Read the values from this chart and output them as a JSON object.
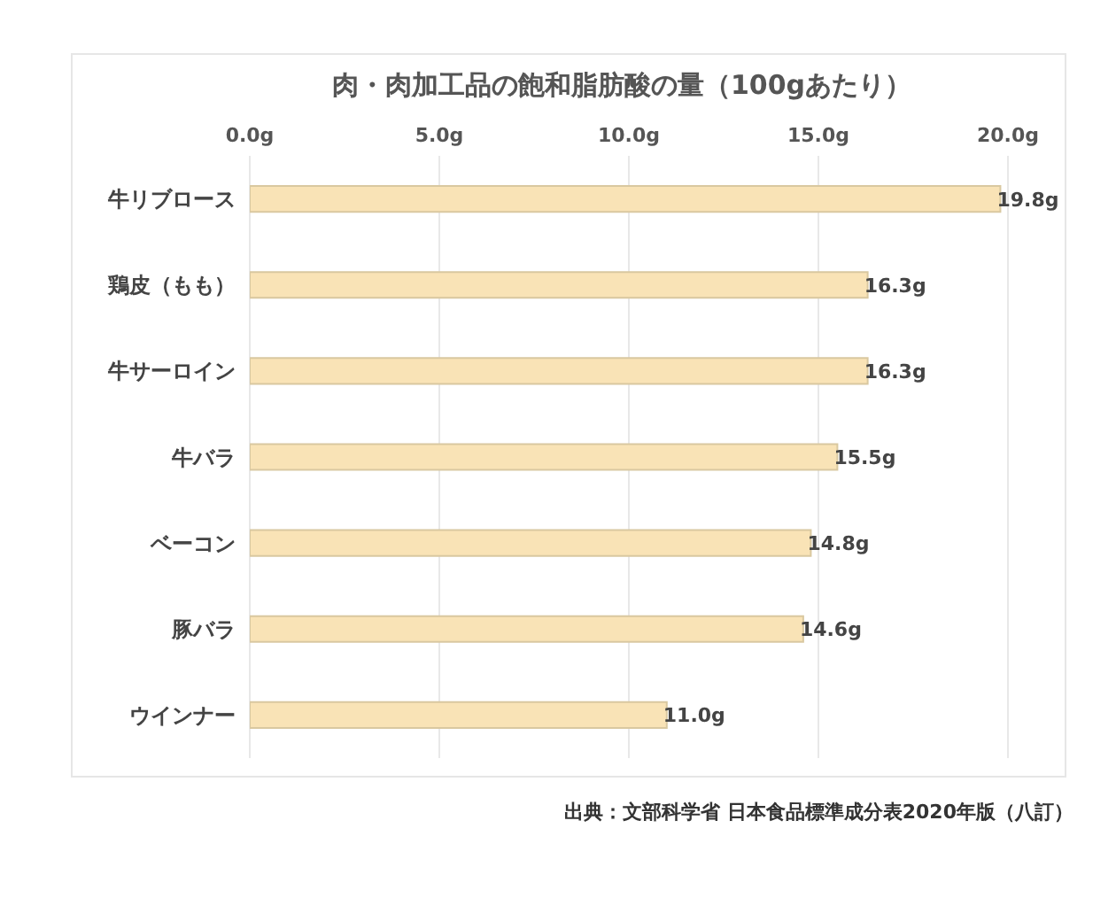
{
  "chart_data": {
    "type": "bar",
    "orientation": "horizontal",
    "title": "肉・肉加工品の飽和脂肪酸の量（100gあたり）",
    "categories": [
      "牛リブロース",
      "鶏皮（もも）",
      "牛サーロイン",
      "牛バラ",
      "ベーコン",
      "豚バラ",
      "ウインナー"
    ],
    "values": [
      19.8,
      16.3,
      16.3,
      15.5,
      14.8,
      14.6,
      11.0
    ],
    "value_labels": [
      "19.8g",
      "16.3g",
      "16.3g",
      "15.5g",
      "14.8g",
      "14.6g",
      "11.0g"
    ],
    "color": "#f9e3b6",
    "xlim": [
      0,
      20
    ],
    "xticks": [
      {
        "value": 0,
        "label": "0.0g"
      },
      {
        "value": 5,
        "label": "5.0g"
      },
      {
        "value": 10,
        "label": "10.0g"
      },
      {
        "value": 15,
        "label": "15.0g"
      },
      {
        "value": 20,
        "label": "20.0g"
      }
    ],
    "grid": "x",
    "legend": false,
    "annotations": [
      "出典：文部科学省 日本食品標準成分表2020年版（八訂）"
    ]
  }
}
